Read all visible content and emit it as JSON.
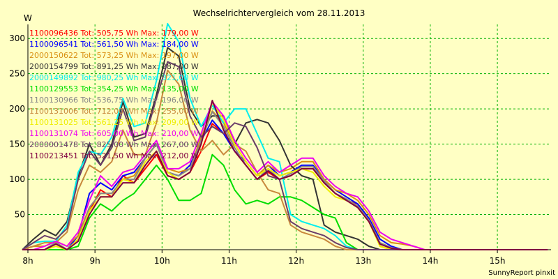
{
  "chart_data": {
    "type": "line",
    "title": "Wechselrichtervergleich vom 28.11.2013",
    "ylabel": "W",
    "footer": "SunnyReport pinxit",
    "ylim": [
      0,
      320
    ],
    "yticks": [
      50,
      100,
      150,
      200,
      250,
      300
    ],
    "xlim": [
      8,
      15.8
    ],
    "xticks": [
      {
        "value": 8,
        "label": "8h"
      },
      {
        "value": 9,
        "label": "9h"
      },
      {
        "value": 10,
        "label": "10h"
      },
      {
        "value": 11,
        "label": "11h"
      },
      {
        "value": 12,
        "label": "12h"
      },
      {
        "value": 13,
        "label": "13h"
      },
      {
        "value": 14,
        "label": "14h"
      },
      {
        "value": 15,
        "label": "15h"
      }
    ],
    "grid": true,
    "legend_position": "top-left",
    "x": [
      7.917,
      8.083,
      8.25,
      8.417,
      8.583,
      8.75,
      8.917,
      9.083,
      9.25,
      9.417,
      9.583,
      9.75,
      9.917,
      10.083,
      10.25,
      10.417,
      10.583,
      10.75,
      10.917,
      11.083,
      11.25,
      11.417,
      11.583,
      11.75,
      11.917,
      12.083,
      12.25,
      12.417,
      12.583,
      12.75,
      12.917,
      13.083,
      13.25,
      13.417,
      13.583,
      13.75,
      13.917,
      14.083,
      14.25,
      14.417,
      14.583,
      14.75,
      14.917,
      15.083,
      15.25,
      15.417,
      15.583,
      15.75
    ],
    "series": [
      {
        "name": "1100096436 Tot: 505,75 Wh Max: 179,00 W",
        "color": "#ff0000",
        "values": [
          0,
          0,
          0,
          10,
          0,
          15,
          55,
          85,
          75,
          105,
          95,
          115,
          135,
          105,
          100,
          110,
          140,
          179,
          165,
          140,
          120,
          100,
          110,
          100,
          105,
          115,
          115,
          95,
          80,
          70,
          65,
          45,
          5,
          0,
          0,
          0,
          0,
          0,
          0,
          0,
          0,
          0,
          0,
          0,
          0,
          0,
          0,
          0
        ]
      },
      {
        "name": "1100096541 Tot: 561,50 Wh Max: 184,00 W",
        "color": "#0000ff",
        "values": [
          0,
          0,
          0,
          10,
          0,
          20,
          80,
          95,
          85,
          105,
          110,
          130,
          150,
          110,
          105,
          120,
          155,
          184,
          165,
          140,
          125,
          105,
          120,
          105,
          110,
          120,
          120,
          100,
          85,
          75,
          65,
          45,
          15,
          5,
          0,
          0,
          0,
          0,
          0,
          0,
          0,
          0,
          0,
          0,
          0,
          0,
          0,
          0
        ]
      },
      {
        "name": "2000150622 Tot: 573,25 Wh Max: 197,00 W",
        "color": "#d99012",
        "values": [
          0,
          5,
          5,
          12,
          5,
          20,
          60,
          80,
          80,
          100,
          105,
          130,
          150,
          115,
          110,
          115,
          160,
          197,
          180,
          150,
          125,
          105,
          120,
          110,
          115,
          125,
          125,
          100,
          85,
          80,
          70,
          50,
          20,
          10,
          8,
          5,
          0,
          0,
          0,
          0,
          0,
          0,
          0,
          0,
          0,
          0,
          0,
          0
        ]
      },
      {
        "name": "2000154799 Tot: 891,25 Wh Max: 287,00 W",
        "color": "#333333",
        "values": [
          0,
          15,
          28,
          20,
          40,
          105,
          150,
          120,
          150,
          210,
          160,
          165,
          220,
          287,
          275,
          200,
          175,
          190,
          190,
          150,
          180,
          185,
          180,
          155,
          120,
          105,
          100,
          35,
          25,
          20,
          15,
          5,
          0,
          0,
          0,
          0,
          0,
          0,
          0,
          0,
          0,
          0,
          0,
          0,
          0,
          0,
          0,
          0
        ]
      },
      {
        "name": "2000149892 Tot: 980,25 Wh Max: 321,00 W",
        "color": "#00eeee",
        "values": [
          0,
          10,
          12,
          12,
          35,
          110,
          140,
          135,
          160,
          215,
          175,
          180,
          240,
          321,
          295,
          215,
          175,
          205,
          180,
          200,
          200,
          165,
          130,
          125,
          50,
          40,
          35,
          30,
          20,
          5,
          0,
          0,
          0,
          0,
          0,
          0,
          0,
          0,
          0,
          0,
          0,
          0,
          0,
          0,
          0,
          0,
          0,
          0
        ]
      },
      {
        "name": "1100129553 Tot: 354,25 Wh Max: 135,00 W",
        "color": "#00dd00",
        "values": [
          0,
          0,
          0,
          0,
          0,
          5,
          45,
          65,
          55,
          70,
          80,
          100,
          120,
          100,
          70,
          70,
          80,
          135,
          120,
          85,
          65,
          70,
          65,
          75,
          75,
          70,
          60,
          50,
          45,
          10,
          0,
          0,
          0,
          0,
          0,
          0,
          0,
          0,
          0,
          0,
          0,
          0,
          0,
          0,
          0,
          0,
          0,
          0
        ]
      },
      {
        "name": "1100130966 Tot: 536,75 Wh Max: 196,00 W",
        "color": "#888888",
        "values": [
          0,
          0,
          0,
          10,
          0,
          15,
          60,
          80,
          80,
          100,
          100,
          130,
          150,
          110,
          105,
          115,
          155,
          196,
          175,
          145,
          120,
          100,
          115,
          100,
          108,
          118,
          118,
          98,
          80,
          72,
          62,
          42,
          10,
          3,
          0,
          0,
          0,
          0,
          0,
          0,
          0,
          0,
          0,
          0,
          0,
          0,
          0,
          0
        ]
      },
      {
        "name": "1100131006 Tot: 712,00 Wh Max: 255,00 W",
        "color": "#c8883c",
        "values": [
          0,
          5,
          10,
          10,
          25,
          85,
          120,
          110,
          125,
          170,
          135,
          135,
          180,
          255,
          235,
          170,
          140,
          155,
          135,
          150,
          140,
          110,
          85,
          80,
          35,
          25,
          20,
          15,
          5,
          0,
          0,
          0,
          0,
          0,
          0,
          0,
          0,
          0,
          0,
          0,
          0,
          0,
          0,
          0,
          0,
          0,
          0,
          0
        ]
      },
      {
        "name": "1100131025 Tot: 561,25 Wh Max: 209,00 W",
        "color": "#eeee00",
        "values": [
          0,
          0,
          0,
          5,
          0,
          15,
          55,
          75,
          75,
          100,
          95,
          125,
          140,
          110,
          100,
          110,
          150,
          209,
          185,
          150,
          125,
          105,
          115,
          105,
          110,
          115,
          110,
          90,
          75,
          70,
          60,
          40,
          5,
          0,
          0,
          0,
          0,
          0,
          0,
          0,
          0,
          0,
          0,
          0,
          0,
          0,
          0,
          0
        ]
      },
      {
        "name": "1100131074 Tot: 605,00 Wh Max: 210,00 W",
        "color": "#ee00ee",
        "values": [
          0,
          0,
          5,
          12,
          5,
          25,
          70,
          105,
          90,
          110,
          115,
          135,
          155,
          115,
          115,
          125,
          165,
          210,
          190,
          155,
          130,
          110,
          125,
          110,
          120,
          130,
          130,
          105,
          90,
          80,
          75,
          55,
          25,
          15,
          10,
          5,
          0,
          0,
          0,
          0,
          0,
          0,
          0,
          0,
          0,
          0,
          0,
          0
        ]
      },
      {
        "name": "2000001478 Tot: 825,00 Wh Max: 267,00 W",
        "color": "#6a3d6a",
        "values": [
          0,
          10,
          20,
          15,
          30,
          100,
          140,
          120,
          145,
          200,
          155,
          160,
          215,
          267,
          260,
          190,
          160,
          175,
          165,
          180,
          175,
          145,
          105,
          100,
          40,
          30,
          25,
          20,
          10,
          3,
          0,
          0,
          0,
          0,
          0,
          0,
          0,
          0,
          0,
          0,
          0,
          0,
          0,
          0,
          0,
          0,
          0,
          0
        ]
      },
      {
        "name": "1100213451 Tot: 521,50 Wh Max: 212,00 W",
        "color": "#800040",
        "values": [
          0,
          0,
          0,
          8,
          0,
          12,
          50,
          75,
          75,
          95,
          95,
          120,
          140,
          105,
          100,
          110,
          150,
          212,
          170,
          140,
          120,
          100,
          112,
          100,
          105,
          115,
          115,
          95,
          80,
          70,
          60,
          40,
          8,
          2,
          0,
          0,
          0,
          0,
          0,
          0,
          0,
          0,
          0,
          0,
          0,
          0,
          0,
          0
        ]
      }
    ]
  }
}
